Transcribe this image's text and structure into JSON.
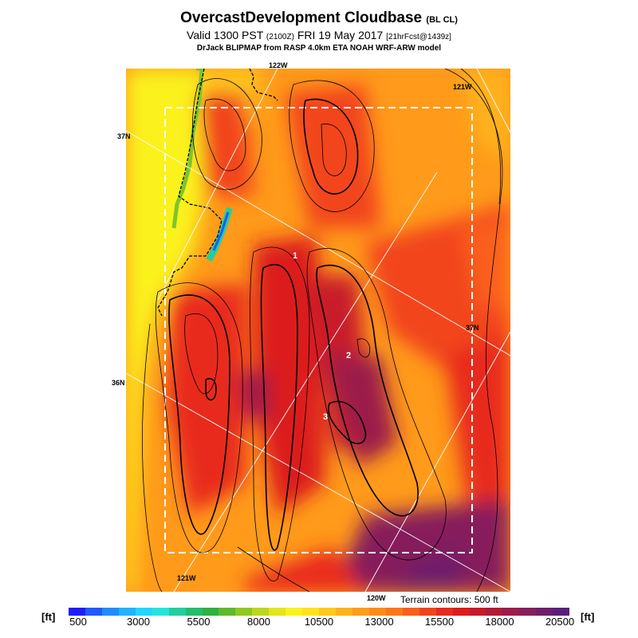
{
  "header": {
    "title": "OvercastDevelopment Cloudbase",
    "title_suffix": "(BL CL)",
    "valid_prefix": "Valid 1300 PST",
    "valid_utc": "(2100Z)",
    "valid_date": "FRI 19 May 2017",
    "forecast_tag": "[21hrFcst@1439z]",
    "source": "DrJack BLIPMAP from RASP 4.0km ETA NOAH WRF-ARW model"
  },
  "map": {
    "labels": {
      "lon_122": "122W",
      "lon_121_top": "121W",
      "lon_121_bottom": "121W",
      "lon_120": "120W",
      "lat_37_left": "37N",
      "lat_37_right": "37N",
      "lat_36": "36N"
    },
    "points": [
      "1",
      "2",
      "3"
    ],
    "terrain_note": "Terrain contours: 500 ft"
  },
  "colorbar": {
    "unit_left": "[ft]",
    "unit_right": "[ft]",
    "ticks": [
      "500",
      "3000",
      "5500",
      "8000",
      "10500",
      "13000",
      "15500",
      "18000",
      "20500"
    ],
    "colors": [
      "#1d1dff",
      "#1f5aff",
      "#1f8cff",
      "#1fb4ff",
      "#20d7ff",
      "#22e6dc",
      "#1fcfa0",
      "#21bf6b",
      "#2fb13f",
      "#5fb92a",
      "#8ec91f",
      "#bcd71c",
      "#e4e51c",
      "#fbf21c",
      "#ffe21a",
      "#ffc91a",
      "#ffb21a",
      "#ff9d1a",
      "#ff8a1a",
      "#ff761a",
      "#fb5e1a",
      "#f2441a",
      "#e82a1c",
      "#dc1c1c",
      "#c81a2a",
      "#b21a38",
      "#9c1c4a",
      "#861e5c",
      "#701f6c",
      "#58207c"
    ]
  }
}
